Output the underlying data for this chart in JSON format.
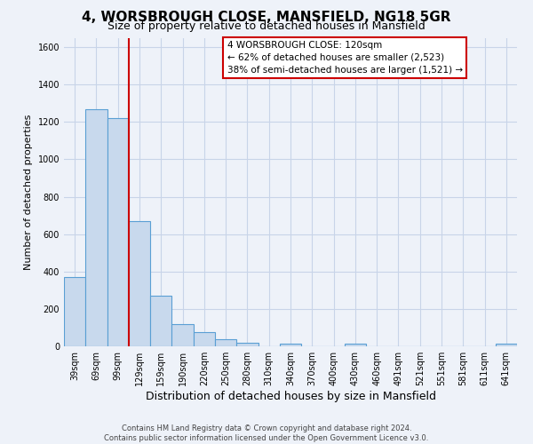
{
  "title": "4, WORSBROUGH CLOSE, MANSFIELD, NG18 5GR",
  "subtitle": "Size of property relative to detached houses in Mansfield",
  "xlabel": "Distribution of detached houses by size in Mansfield",
  "ylabel": "Number of detached properties",
  "categories": [
    "39sqm",
    "69sqm",
    "99sqm",
    "129sqm",
    "159sqm",
    "190sqm",
    "220sqm",
    "250sqm",
    "280sqm",
    "310sqm",
    "340sqm",
    "370sqm",
    "400sqm",
    "430sqm",
    "460sqm",
    "491sqm",
    "521sqm",
    "551sqm",
    "581sqm",
    "611sqm",
    "641sqm"
  ],
  "values": [
    370,
    1270,
    1220,
    670,
    270,
    120,
    75,
    40,
    20,
    0,
    15,
    0,
    0,
    15,
    0,
    0,
    0,
    0,
    0,
    0,
    15
  ],
  "bar_color": "#c8d9ed",
  "bar_edge_color": "#5a9fd4",
  "vline_x": 2.5,
  "vline_color": "#cc0000",
  "ylim": [
    0,
    1650
  ],
  "yticks": [
    0,
    200,
    400,
    600,
    800,
    1000,
    1200,
    1400,
    1600
  ],
  "annotation_title": "4 WORSBROUGH CLOSE: 120sqm",
  "annotation_line1": "← 62% of detached houses are smaller (2,523)",
  "annotation_line2": "38% of semi-detached houses are larger (1,521) →",
  "annotation_box_color": "#ffffff",
  "annotation_box_edge": "#cc0000",
  "footer1": "Contains HM Land Registry data © Crown copyright and database right 2024.",
  "footer2": "Contains public sector information licensed under the Open Government Licence v3.0.",
  "background_color": "#eef2f9",
  "grid_color": "#c8d4e8",
  "title_fontsize": 11,
  "subtitle_fontsize": 9,
  "xlabel_fontsize": 9,
  "ylabel_fontsize": 8,
  "tick_fontsize": 7,
  "annotation_fontsize": 7.5,
  "footer_fontsize": 6
}
